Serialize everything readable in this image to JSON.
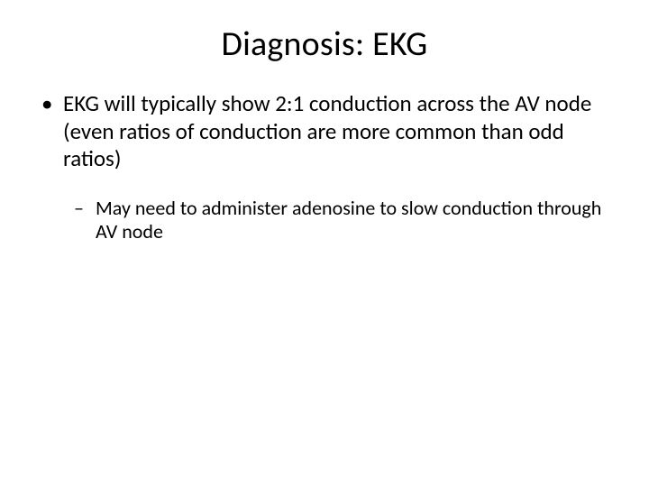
{
  "slide": {
    "title": "Diagnosis: EKG",
    "bullets": {
      "level1": [
        "EKG will typically show 2:1 conduction across the AV node (even ratios of conduction are more common than odd ratios)"
      ],
      "level2": [
        "May need to administer adenosine to slow conduction through AV node"
      ]
    }
  },
  "style": {
    "background_color": "#ffffff",
    "text_color": "#000000",
    "title_fontsize": 38,
    "level1_fontsize": 25,
    "level2_fontsize": 22,
    "font_family": "Calibri"
  }
}
